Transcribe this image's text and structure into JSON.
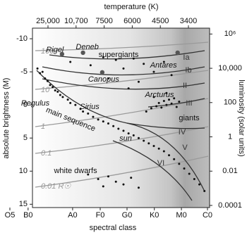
{
  "chart_data": {
    "type": "scatter",
    "x2_label": "temperature (K)",
    "x_label": "spectral class",
    "y_label": "absolute brightness (M)",
    "y2_label": "luminosity (solar units)",
    "x2_categories": [
      "25,000",
      "10,700",
      "7500",
      "6000",
      "4500",
      "3400"
    ],
    "xlim": [
      -0.89,
      6.92
    ],
    "xticks": [
      {
        "value": -0.89,
        "label": "O5"
      },
      {
        "value": -0.17,
        "label": "B0"
      },
      {
        "value": 1.59,
        "label": "A0"
      },
      {
        "value": 2.68,
        "label": "F0"
      },
      {
        "value": 3.74,
        "label": "G0"
      },
      {
        "value": 4.82,
        "label": "K0"
      },
      {
        "value": 5.89,
        "label": "M0"
      },
      {
        "value": 6.92,
        "label": "C0"
      }
    ],
    "ylim": [
      15.5,
      -11.6
    ],
    "yticks": [
      -10,
      -5,
      0,
      5,
      10,
      15
    ],
    "y2_log": true,
    "y2lim": [
      7.5e-05,
      2200000
    ],
    "y2ticks": [
      {
        "value": 1000000,
        "label": "10⁶"
      },
      {
        "value": 10000,
        "label": "10,000"
      },
      100,
      1,
      0.01,
      0.0001
    ],
    "color": "#111111",
    "x": [
      0.2,
      0.3,
      0.4,
      0.5,
      0.6,
      0.7,
      0.8,
      0.9,
      1.0,
      1.1,
      1.2,
      1.4,
      1.5,
      1.7,
      1.9,
      2.0,
      2.2,
      2.4,
      2.6,
      2.8,
      3.0,
      3.2,
      3.4,
      3.6,
      3.8,
      4.0,
      4.2,
      4.4,
      4.6,
      4.8,
      5.0,
      5.2,
      5.4,
      5.6,
      5.8,
      6.0,
      6.2,
      6.4,
      6.6,
      6.8,
      4.5,
      4.7,
      4.9,
      5.0,
      5.1,
      5.2,
      5.3,
      5.4,
      5.5,
      5.6,
      5.7,
      5.8,
      4.8,
      5.3,
      1.5,
      2.3,
      2.8,
      3.3,
      3.6,
      4.0,
      4.4,
      4.8,
      5.2,
      5.5,
      3.0,
      4.2,
      3.8,
      2.2,
      2.6,
      3.0,
      3.3,
      3.6,
      3.9,
      4.2,
      2.8
    ],
    "values": [
      -5.5,
      -4.8,
      -5.0,
      -4.0,
      -3.6,
      -3.0,
      -2.7,
      -2.2,
      -2.0,
      -1.5,
      -1.2,
      -0.8,
      -0.3,
      0.0,
      0.6,
      1.0,
      1.3,
      1.8,
      2.2,
      2.5,
      2.8,
      3.2,
      3.6,
      3.9,
      4.3,
      4.6,
      5.0,
      5.4,
      5.8,
      6.2,
      6.6,
      7.0,
      7.6,
      8.2,
      8.9,
      9.6,
      10.4,
      11.2,
      12.0,
      13.0,
      1.0,
      0.5,
      0.2,
      -0.3,
      0.4,
      -0.6,
      0.0,
      -0.8,
      -0.2,
      -1.0,
      0.3,
      -0.5,
      -1.2,
      -1.8,
      -6.5,
      -6.0,
      -7.2,
      -6.8,
      -5.5,
      -7.0,
      -6.2,
      -5.0,
      -6.5,
      -4.5,
      -4.0,
      -3.5,
      -2.5,
      10.5,
      11.2,
      10.8,
      11.6,
      12.0,
      11.0,
      12.5,
      12.3
    ],
    "named_stars": {
      "names": [
        "Rigel",
        "Deneb",
        "Canopus",
        "Antares"
      ],
      "x": [
        1.17,
        2.0,
        2.76,
        5.74
      ],
      "y": [
        -7.68,
        -7.89,
        -4.92,
        -7.89
      ],
      "color": "#555555"
    },
    "star_labels": [
      "Regulus",
      "Sirius",
      "Arcturus",
      "sun"
    ],
    "regions": [
      "supergiants",
      "giants",
      "main sequence",
      "white dwarfs"
    ],
    "classes": [
      "Ia",
      "Ib",
      "II",
      "III",
      "IV",
      "V",
      "VI"
    ],
    "radius_labels": [
      "100",
      "10",
      "1",
      "0.1",
      "0.01 R☉"
    ]
  }
}
